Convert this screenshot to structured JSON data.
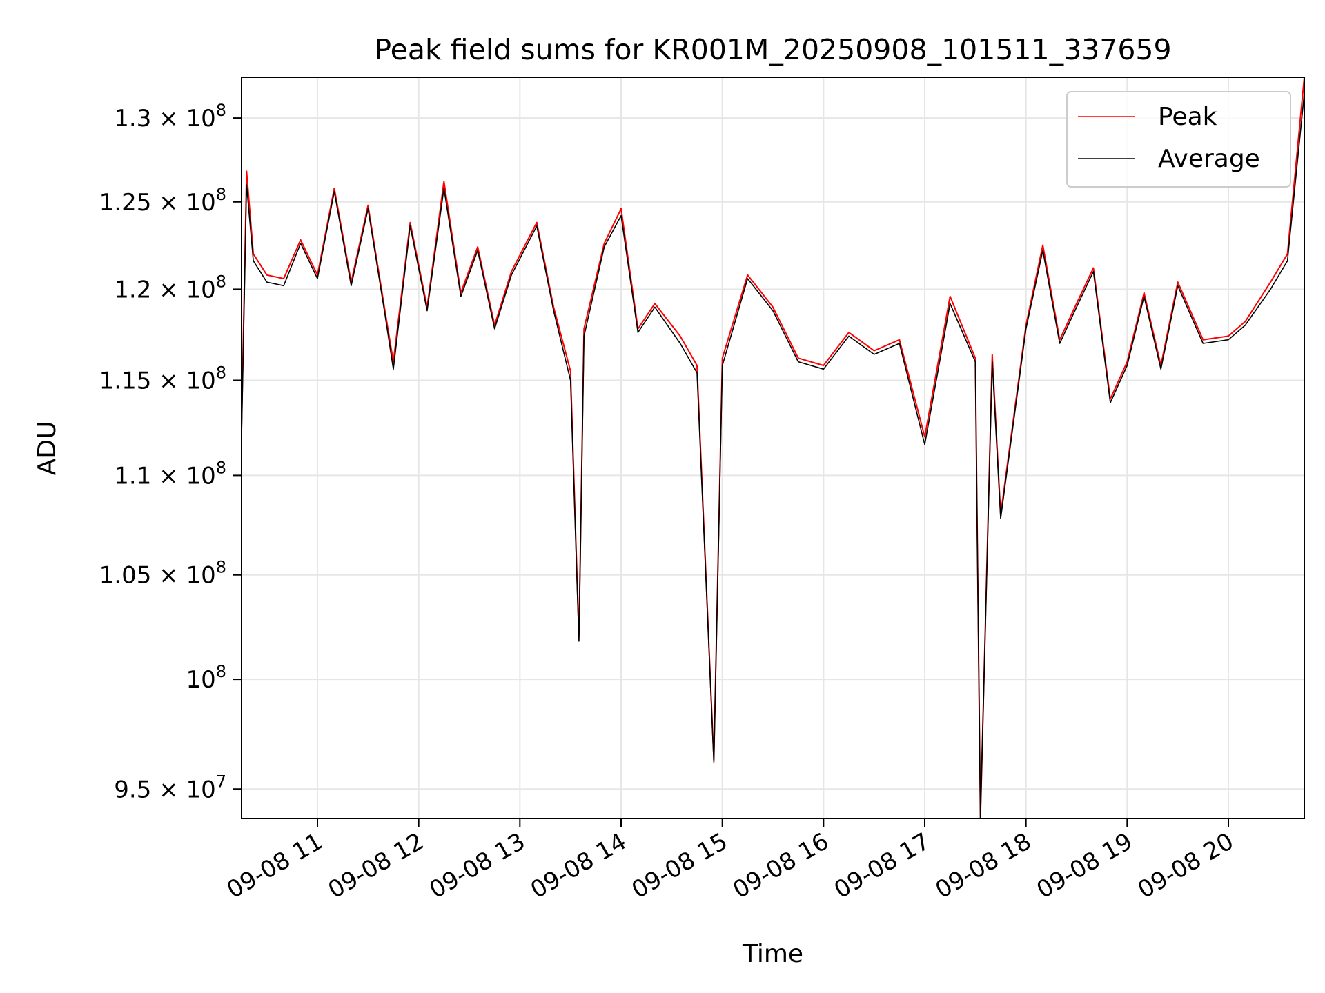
{
  "chart_data": {
    "type": "line",
    "title": "Peak field sums for KR001M_20250908_101511_337659",
    "xlabel": "Time",
    "ylabel": "ADU",
    "y_scale": "log",
    "grid": true,
    "legend_position": "top-right",
    "xlim": [
      "2025-09-08 10:15",
      "2025-09-08 20:45"
    ],
    "ylim": [
      93700000,
      132500000
    ],
    "x_ticks": [
      "09-08 11",
      "09-08 12",
      "09-08 13",
      "09-08 14",
      "09-08 15",
      "09-08 16",
      "09-08 17",
      "09-08 18",
      "09-08 19",
      "09-08 20"
    ],
    "x_tick_times": [
      "2025-09-08 11:00",
      "2025-09-08 12:00",
      "2025-09-08 13:00",
      "2025-09-08 14:00",
      "2025-09-08 15:00",
      "2025-09-08 16:00",
      "2025-09-08 17:00",
      "2025-09-08 18:00",
      "2025-09-08 19:00",
      "2025-09-08 20:00"
    ],
    "y_ticks": [
      {
        "value": 95000000,
        "mant": "9.5",
        "exp": "7"
      },
      {
        "value": 100000000,
        "mant": "",
        "exp": "8"
      },
      {
        "value": 105000000,
        "mant": "1.05",
        "exp": "8"
      },
      {
        "value": 110000000,
        "mant": "1.1",
        "exp": "8"
      },
      {
        "value": 115000000,
        "mant": "1.15",
        "exp": "8"
      },
      {
        "value": 120000000,
        "mant": "1.2",
        "exp": "8"
      },
      {
        "value": 125000000,
        "mant": "1.25",
        "exp": "8"
      },
      {
        "value": 130000000,
        "mant": "1.3",
        "exp": "8"
      }
    ],
    "series": [
      {
        "name": "Peak",
        "color": "#ff0000",
        "points": [
          [
            "2025-09-08 10:15",
            112500000
          ],
          [
            "2025-09-08 10:18",
            126800000
          ],
          [
            "2025-09-08 10:22",
            122000000
          ],
          [
            "2025-09-08 10:30",
            120800000
          ],
          [
            "2025-09-08 10:40",
            120600000
          ],
          [
            "2025-09-08 10:50",
            122800000
          ],
          [
            "2025-09-08 11:00",
            120800000
          ],
          [
            "2025-09-08 11:10",
            125800000
          ],
          [
            "2025-09-08 11:20",
            120400000
          ],
          [
            "2025-09-08 11:30",
            124800000
          ],
          [
            "2025-09-08 11:40",
            118800000
          ],
          [
            "2025-09-08 11:45",
            116000000
          ],
          [
            "2025-09-08 11:55",
            123800000
          ],
          [
            "2025-09-08 12:05",
            119000000
          ],
          [
            "2025-09-08 12:15",
            126200000
          ],
          [
            "2025-09-08 12:25",
            119800000
          ],
          [
            "2025-09-08 12:35",
            122400000
          ],
          [
            "2025-09-08 12:45",
            118000000
          ],
          [
            "2025-09-08 12:55",
            121000000
          ],
          [
            "2025-09-08 13:10",
            123800000
          ],
          [
            "2025-09-08 13:20",
            119000000
          ],
          [
            "2025-09-08 13:30",
            115500000
          ],
          [
            "2025-09-08 13:35",
            102000000
          ],
          [
            "2025-09-08 13:38",
            117800000
          ],
          [
            "2025-09-08 13:50",
            122600000
          ],
          [
            "2025-09-08 14:00",
            124600000
          ],
          [
            "2025-09-08 14:10",
            117800000
          ],
          [
            "2025-09-08 14:20",
            119200000
          ],
          [
            "2025-09-08 14:35",
            117400000
          ],
          [
            "2025-09-08 14:45",
            115800000
          ],
          [
            "2025-09-08 14:55",
            96300000
          ],
          [
            "2025-09-08 15:00",
            116200000
          ],
          [
            "2025-09-08 15:15",
            120800000
          ],
          [
            "2025-09-08 15:30",
            119000000
          ],
          [
            "2025-09-08 15:45",
            116200000
          ],
          [
            "2025-09-08 16:00",
            115800000
          ],
          [
            "2025-09-08 16:15",
            117600000
          ],
          [
            "2025-09-08 16:30",
            116600000
          ],
          [
            "2025-09-08 16:45",
            117200000
          ],
          [
            "2025-09-08 17:00",
            112000000
          ],
          [
            "2025-09-08 17:15",
            119600000
          ],
          [
            "2025-09-08 17:30",
            116200000
          ],
          [
            "2025-09-08 17:33",
            93700000
          ],
          [
            "2025-09-08 17:40",
            116400000
          ],
          [
            "2025-09-08 17:45",
            108000000
          ],
          [
            "2025-09-08 18:00",
            118000000
          ],
          [
            "2025-09-08 18:10",
            122500000
          ],
          [
            "2025-09-08 18:20",
            117200000
          ],
          [
            "2025-09-08 18:30",
            119200000
          ],
          [
            "2025-09-08 18:40",
            121200000
          ],
          [
            "2025-09-08 18:50",
            114000000
          ],
          [
            "2025-09-08 19:00",
            116000000
          ],
          [
            "2025-09-08 19:10",
            119800000
          ],
          [
            "2025-09-08 19:20",
            115800000
          ],
          [
            "2025-09-08 19:30",
            120400000
          ],
          [
            "2025-09-08 19:45",
            117200000
          ],
          [
            "2025-09-08 20:00",
            117400000
          ],
          [
            "2025-09-08 20:10",
            118200000
          ],
          [
            "2025-09-08 20:25",
            120400000
          ],
          [
            "2025-09-08 20:35",
            122000000
          ],
          [
            "2025-09-08 20:45",
            132500000
          ]
        ]
      },
      {
        "name": "Average",
        "color": "#000000",
        "points": [
          [
            "2025-09-08 10:15",
            112000000
          ],
          [
            "2025-09-08 10:18",
            126000000
          ],
          [
            "2025-09-08 10:22",
            121600000
          ],
          [
            "2025-09-08 10:30",
            120400000
          ],
          [
            "2025-09-08 10:40",
            120200000
          ],
          [
            "2025-09-08 10:50",
            122600000
          ],
          [
            "2025-09-08 11:00",
            120600000
          ],
          [
            "2025-09-08 11:10",
            125600000
          ],
          [
            "2025-09-08 11:20",
            120200000
          ],
          [
            "2025-09-08 11:30",
            124600000
          ],
          [
            "2025-09-08 11:40",
            118600000
          ],
          [
            "2025-09-08 11:45",
            115600000
          ],
          [
            "2025-09-08 11:55",
            123600000
          ],
          [
            "2025-09-08 12:05",
            118800000
          ],
          [
            "2025-09-08 12:15",
            125800000
          ],
          [
            "2025-09-08 12:25",
            119600000
          ],
          [
            "2025-09-08 12:35",
            122200000
          ],
          [
            "2025-09-08 12:45",
            117800000
          ],
          [
            "2025-09-08 12:55",
            120800000
          ],
          [
            "2025-09-08 13:10",
            123600000
          ],
          [
            "2025-09-08 13:20",
            118800000
          ],
          [
            "2025-09-08 13:30",
            115000000
          ],
          [
            "2025-09-08 13:35",
            101800000
          ],
          [
            "2025-09-08 13:38",
            117400000
          ],
          [
            "2025-09-08 13:50",
            122400000
          ],
          [
            "2025-09-08 14:00",
            124200000
          ],
          [
            "2025-09-08 14:10",
            117600000
          ],
          [
            "2025-09-08 14:20",
            119000000
          ],
          [
            "2025-09-08 14:35",
            117000000
          ],
          [
            "2025-09-08 14:45",
            115400000
          ],
          [
            "2025-09-08 14:55",
            96200000
          ],
          [
            "2025-09-08 15:00",
            115800000
          ],
          [
            "2025-09-08 15:15",
            120600000
          ],
          [
            "2025-09-08 15:30",
            118800000
          ],
          [
            "2025-09-08 15:45",
            116000000
          ],
          [
            "2025-09-08 16:00",
            115600000
          ],
          [
            "2025-09-08 16:15",
            117400000
          ],
          [
            "2025-09-08 16:30",
            116400000
          ],
          [
            "2025-09-08 16:45",
            117000000
          ],
          [
            "2025-09-08 17:00",
            111600000
          ],
          [
            "2025-09-08 17:15",
            119200000
          ],
          [
            "2025-09-08 17:30",
            116000000
          ],
          [
            "2025-09-08 17:33",
            93700000
          ],
          [
            "2025-09-08 17:40",
            116000000
          ],
          [
            "2025-09-08 17:45",
            107800000
          ],
          [
            "2025-09-08 18:00",
            117800000
          ],
          [
            "2025-09-08 18:10",
            122200000
          ],
          [
            "2025-09-08 18:20",
            117000000
          ],
          [
            "2025-09-08 18:30",
            119000000
          ],
          [
            "2025-09-08 18:40",
            121000000
          ],
          [
            "2025-09-08 18:50",
            113800000
          ],
          [
            "2025-09-08 19:00",
            115800000
          ],
          [
            "2025-09-08 19:10",
            119600000
          ],
          [
            "2025-09-08 19:20",
            115600000
          ],
          [
            "2025-09-08 19:30",
            120200000
          ],
          [
            "2025-09-08 19:45",
            117000000
          ],
          [
            "2025-09-08 20:00",
            117200000
          ],
          [
            "2025-09-08 20:10",
            118000000
          ],
          [
            "2025-09-08 20:25",
            120000000
          ],
          [
            "2025-09-08 20:35",
            121600000
          ],
          [
            "2025-09-08 20:45",
            131500000
          ]
        ]
      }
    ]
  }
}
